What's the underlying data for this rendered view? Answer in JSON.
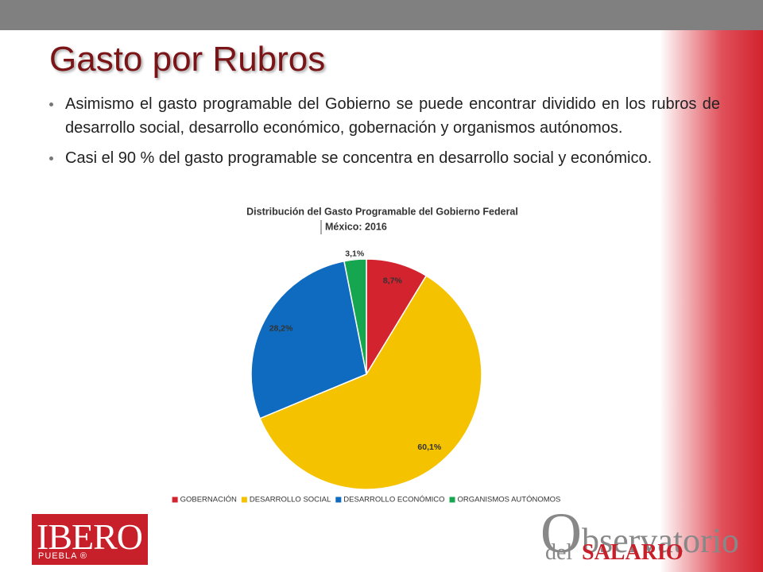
{
  "slide": {
    "title": "Gasto por Rubros",
    "bullets": [
      "Asimismo el gasto programable del Gobierno se puede encontrar dividido en los rubros de desarrollo social, desarrollo económico, gobernación y organismos autónomos.",
      "Casi el 90 % del gasto programable se concentra en desarrollo social y económico."
    ],
    "logos": {
      "ibero": "IBERO",
      "ibero_sub": "PUEBLA ®",
      "observatorio": "Observatorio",
      "del": "del",
      "salario": "SALARIO"
    }
  },
  "chart_data": {
    "type": "pie",
    "title": "Distribución del Gasto Programable del Gobierno Federal",
    "subtitle": "México: 2016",
    "categories": [
      "GOBERNACIÓN",
      "DESARROLLO SOCIAL",
      "DESARROLLO ECONÓMICO",
      "ORGANISMOS AUTÓNOMOS"
    ],
    "values": [
      8.7,
      60.1,
      28.2,
      3.1
    ],
    "value_labels": [
      "8,7%",
      "60,1%",
      "28,2%",
      "3,1%"
    ],
    "colors": [
      "#d2232e",
      "#f5c200",
      "#0f6bbf",
      "#16a650"
    ],
    "legend": "bottom"
  }
}
